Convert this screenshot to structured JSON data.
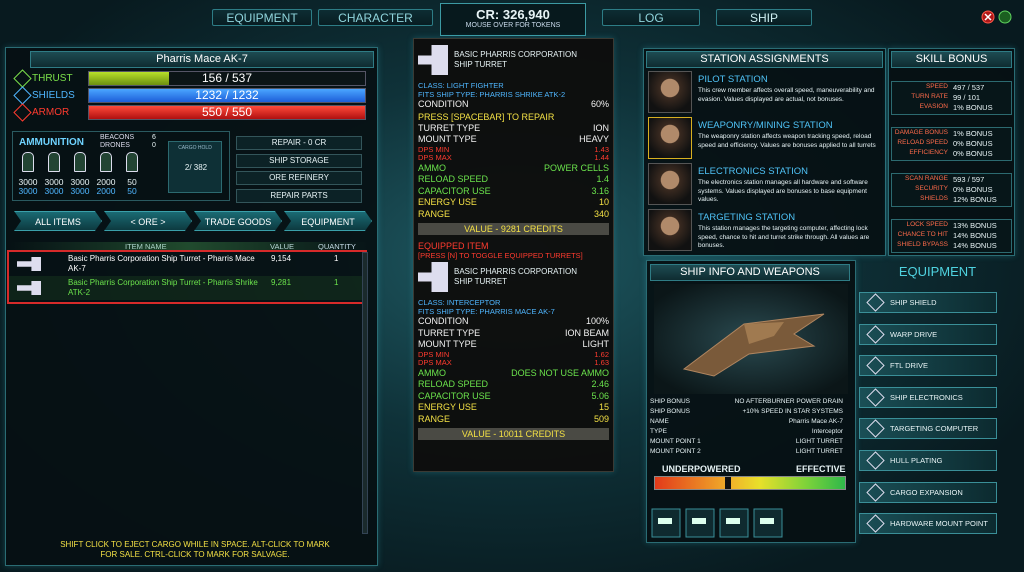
{
  "tabs": [
    "EQUIPMENT",
    "CHARACTER",
    "LOG",
    "SHIP"
  ],
  "credits": {
    "amount": "CR: 326,940",
    "hint": "MOUSE OVER FOR TOKENS"
  },
  "ship": {
    "name": "Pharris Mace AK-7",
    "stats": [
      {
        "label": "THRUST",
        "value": "156 / 537"
      },
      {
        "label": "SHIELDS",
        "value": "1232 / 1232"
      },
      {
        "label": "ARMOR",
        "value": "550 / 550"
      }
    ]
  },
  "ammunition": {
    "title": "AMMUNITION",
    "counters": [
      {
        "label": "BEACONS",
        "value": "6"
      },
      {
        "label": "DRONES",
        "value": "0"
      }
    ],
    "slots": [
      {
        "current": "3000",
        "max": "3000"
      },
      {
        "current": "3000",
        "max": "3000"
      },
      {
        "current": "3000",
        "max": "3000"
      },
      {
        "current": "2000",
        "max": "2000"
      },
      {
        "current": "50",
        "max": "50"
      }
    ],
    "cargo": {
      "label": "CARGO HOLD",
      "value": "2/ 382"
    }
  },
  "actions": [
    "REPAIR - 0 CR",
    "SHIP STORAGE",
    "ORE REFINERY",
    "REPAIR PARTS"
  ],
  "filters": [
    "ALL ITEMS",
    "< ORE >",
    "TRADE GOODS",
    "EQUIPMENT"
  ],
  "inventory": {
    "columns": [
      "ITEM NAME",
      "VALUE",
      "QUANTITY"
    ],
    "rows": [
      [
        "Basic Pharris Corporation Ship Turret - Pharris Mace AK-7",
        "9,154",
        "1"
      ],
      [
        "Basic Pharris Corporation Ship Turret - Pharris Shrike ATK-2",
        "9,281",
        "1"
      ]
    ],
    "footer": "SHIFT CLICK TO EJECT CARGO WHILE IN SPACE. ALT-CLICK TO MARK FOR SALE. CTRL-CLICK TO MARK FOR SALVAGE."
  },
  "tooltip": {
    "compare": {
      "name": "BASIC PHARRIS CORPORATION SHIP TURRET",
      "class": "CLASS: LIGHT FIGHTER",
      "fits": "FITS SHIP TYPE: PHARRIS SHRIKE ATK-2",
      "condition": {
        "label": "CONDITION",
        "value": "60%"
      },
      "repair_hint": "PRESS [SPACEBAR] TO REPAIR",
      "types": [
        {
          "label": "TURRET TYPE",
          "value": "ION"
        },
        {
          "label": "MOUNT TYPE",
          "value": "HEAVY"
        }
      ],
      "dps": [
        {
          "label": "DPS MIN",
          "value": "1.43"
        },
        {
          "label": "DPS MAX",
          "value": "1.44"
        }
      ],
      "ammo": [
        {
          "label": "AMMO",
          "value": "POWER CELLS"
        },
        {
          "label": "RELOAD SPEED",
          "value": "1.4"
        },
        {
          "label": "CAPACITOR USE",
          "value": "3.16"
        }
      ],
      "power": [
        {
          "label": "ENERGY USE",
          "value": "10"
        },
        {
          "label": "RANGE",
          "value": "340"
        }
      ],
      "value": "VALUE - 9281 CREDITS"
    },
    "equipped_label": "EQUIPPED ITEM",
    "toggle_hint": "[PRESS [N] TO TOGGLE EQUIPPED TURRETS]",
    "equipped": {
      "name": "BASIC PHARRIS CORPORATION SHIP TURRET",
      "class": "CLASS: INTERCEPTOR",
      "fits": "FITS SHIP TYPE: PHARRIS MACE AK-7",
      "condition": {
        "label": "CONDITION",
        "value": "100%"
      },
      "types": [
        {
          "label": "TURRET TYPE",
          "value": "ION BEAM"
        },
        {
          "label": "MOUNT TYPE",
          "value": "LIGHT"
        }
      ],
      "dps": [
        {
          "label": "DPS MIN",
          "value": "1.62"
        },
        {
          "label": "DPS MAX",
          "value": "1.63"
        }
      ],
      "ammo": [
        {
          "label": "AMMO",
          "value": "DOES NOT USE AMMO"
        },
        {
          "label": "RELOAD SPEED",
          "value": "2.46"
        },
        {
          "label": "CAPACITOR USE",
          "value": "5.06"
        }
      ],
      "power": [
        {
          "label": "ENERGY USE",
          "value": "15"
        },
        {
          "label": "RANGE",
          "value": "509"
        }
      ],
      "value": "VALUE - 10011 CREDITS"
    }
  },
  "stations": {
    "title": "STATION ASSIGNMENTS",
    "bonus_title": "SKILL BONUS",
    "items": [
      {
        "name": "PILOT STATION",
        "description": "This crew member affects overall speed, maneuverability and evasion. Values displayed are actual, not bonuses.",
        "bonuses": [
          {
            "label": "SPEED",
            "value": "497 / 537"
          },
          {
            "label": "TURN RATE",
            "value": "99 / 101"
          },
          {
            "label": "EVASION",
            "value": "1% BONUS"
          }
        ]
      },
      {
        "name": "WEAPONRY/MINING STATION",
        "description": "The weaponry station affects weapon tracking speed, reload speed and efficiency. Values are bonuses applied to all turrets",
        "bonuses": [
          {
            "label": "DAMAGE BONUS",
            "value": "1% BONUS"
          },
          {
            "label": "RELOAD SPEED",
            "value": "0% BONUS"
          },
          {
            "label": "EFFICIENCY",
            "value": "0% BONUS"
          }
        ]
      },
      {
        "name": "ELECTRONICS STATION",
        "description": "The electronics station manages all hardware and software systems. Values displayed are bonuses to base equipment values.",
        "bonuses": [
          {
            "label": "SCAN RANGE",
            "value": "593 / 597"
          },
          {
            "label": "SECURITY",
            "value": "0% BONUS"
          },
          {
            "label": "SHIELDS",
            "value": "12% BONUS"
          }
        ]
      },
      {
        "name": "TARGETING STATION",
        "description": "This station manages the targeting computer, affecting lock speed, chance to hit and turret strike through. All values are bonuses.",
        "bonuses": [
          {
            "label": "LOCK SPEED",
            "value": "13% BONUS"
          },
          {
            "label": "CHANCE TO HIT",
            "value": "14% BONUS"
          },
          {
            "label": "SHIELD BYPASS",
            "value": "14% BONUS"
          }
        ]
      }
    ]
  },
  "ship_info": {
    "title": "SHIP INFO AND WEAPONS",
    "rows": [
      {
        "label": "SHIP BONUS",
        "value": "NO AFTERBURNER POWER DRAIN"
      },
      {
        "label": "SHIP BONUS",
        "value": "+10% SPEED IN STAR SYSTEMS"
      },
      {
        "label": "NAME",
        "value": "Pharris Mace AK-7"
      },
      {
        "label": "TYPE",
        "value": "Interceptor"
      },
      {
        "label": "MOUNT POINT 1",
        "value": "LIGHT TURRET"
      },
      {
        "label": "MOUNT POINT 2",
        "value": "LIGHT TURRET"
      }
    ],
    "power_low": "UNDERPOWERED",
    "power_high": "EFFECTIVE"
  },
  "equipment": {
    "title": "EQUIPMENT",
    "items": [
      "SHIP SHIELD",
      "WARP DRIVE",
      "FTL DRIVE",
      "SHIP ELECTRONICS",
      "TARGETING COMPUTER",
      "HULL PLATING",
      "CARGO EXPANSION",
      "HARDWARE MOUNT POINT"
    ]
  }
}
